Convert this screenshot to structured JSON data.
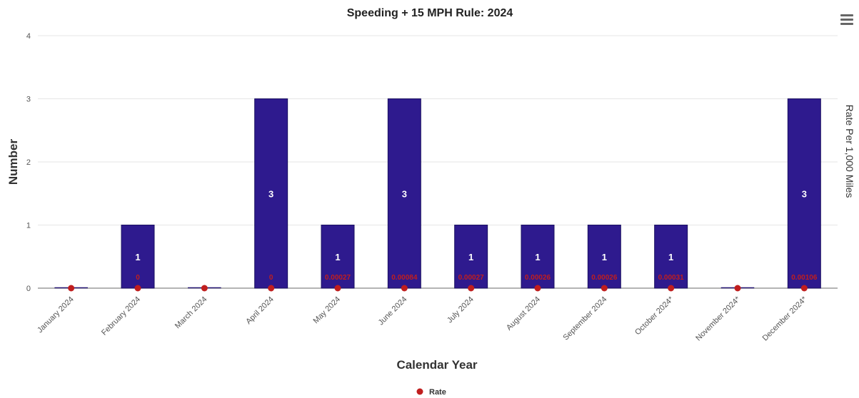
{
  "chart_data": {
    "type": "bar",
    "title": "Speeding + 15 MPH Rule: 2024",
    "xlabel": "Calendar Year",
    "ylabel": "Number",
    "y2label": "Rate Per 1,000 Miles",
    "ylim": [
      0,
      4
    ],
    "yticks": [
      "0",
      "1",
      "2",
      "3",
      "4"
    ],
    "categories": [
      "January 2024",
      "February 2024",
      "March 2024",
      "April 2024",
      "May 2024",
      "June 2024",
      "July 2024",
      "August 2024",
      "September 2024",
      "October 2024*",
      "November 2024*",
      "December 2024*"
    ],
    "series": [
      {
        "name": "",
        "type": "bar",
        "values": [
          0,
          1,
          0,
          3,
          1,
          3,
          1,
          1,
          1,
          1,
          0,
          3
        ],
        "labels": [
          "",
          "1",
          "",
          "3",
          "1",
          "3",
          "1",
          "1",
          "1",
          "1",
          "",
          "3"
        ]
      },
      {
        "name": "Rate",
        "type": "scatter",
        "values": [
          0,
          0,
          0,
          0,
          0.00027,
          0.00084,
          0.00027,
          0.00026,
          0.00026,
          0.00031,
          0,
          0.00106
        ],
        "labels": [
          "",
          "0",
          "",
          "0",
          "0.00027",
          "0.00084",
          "0.00027",
          "0.00026",
          "0.00026",
          "0.00031",
          "",
          "0.00106"
        ]
      }
    ],
    "legend": "bottom-center",
    "grid": true,
    "colors": {
      "bar": "#2e1a8e",
      "bar_label": "#ffffff",
      "rate": "#c01e1e",
      "grid": "#e6e6e6",
      "axis": "#888888"
    }
  },
  "menu": {
    "icon": "hamburger-menu-icon"
  }
}
